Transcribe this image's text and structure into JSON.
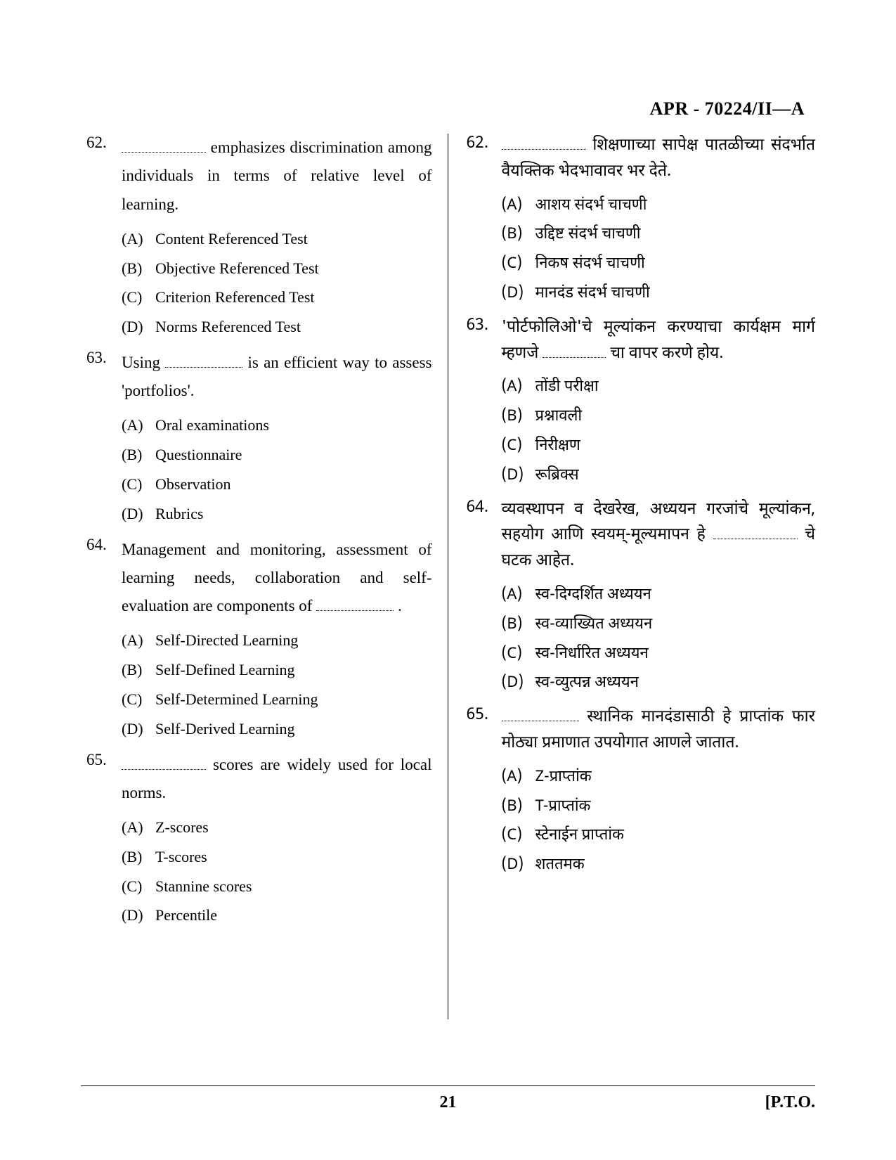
{
  "header": {
    "code": "APR - 70224/II—A"
  },
  "footer": {
    "page": "21",
    "pto": "[P.T.O."
  },
  "blank_widths": {
    "short": "90px",
    "med": "110px",
    "long": "120px"
  },
  "left": {
    "questions": [
      {
        "num": "62.",
        "stem_pre": "",
        "blank": "long",
        "stem_post": " emphasizes discrimination among individuals in terms of relative level of learning.",
        "options": [
          {
            "label": "(A)",
            "text": "Content Referenced Test"
          },
          {
            "label": "(B)",
            "text": "Objective Referenced Test"
          },
          {
            "label": "(C)",
            "text": "Criterion Referenced Test"
          },
          {
            "label": "(D)",
            "text": "Norms Referenced Test"
          }
        ]
      },
      {
        "num": "63.",
        "stem_pre": "Using ",
        "blank": "med",
        "stem_post": " is an efficient way to assess 'portfolios'.",
        "options": [
          {
            "label": "(A)",
            "text": "Oral examinations"
          },
          {
            "label": "(B)",
            "text": "Questionnaire"
          },
          {
            "label": "(C)",
            "text": "Observation"
          },
          {
            "label": "(D)",
            "text": "Rubrics"
          }
        ]
      },
      {
        "num": "64.",
        "stem_pre": "Management and monitoring, assessment of learning needs, collaboration and self-evaluation are components of ",
        "blank": "med",
        "stem_post": " .",
        "options": [
          {
            "label": "(A)",
            "text": "Self-Directed Learning"
          },
          {
            "label": "(B)",
            "text": "Self-Defined Learning"
          },
          {
            "label": "(C)",
            "text": "Self-Determined Learning"
          },
          {
            "label": "(D)",
            "text": "Self-Derived Learning"
          }
        ]
      },
      {
        "num": "65.",
        "stem_pre": "",
        "blank": "long",
        "stem_post": " scores are widely used for local norms.",
        "options": [
          {
            "label": "(A)",
            "text": "Z-scores"
          },
          {
            "label": "(B)",
            "text": "T-scores"
          },
          {
            "label": "(C)",
            "text": "Stannine scores"
          },
          {
            "label": "(D)",
            "text": "Percentile"
          }
        ]
      }
    ]
  },
  "right": {
    "questions": [
      {
        "num": "62.",
        "stem_pre": "",
        "blank": "long",
        "stem_post": " शिक्षणाच्या सापेक्ष पातळीच्या संदर्भात वैयक्तिक भेदभावावर भर देते.",
        "options": [
          {
            "label": "(A)",
            "text": "आशय संदर्भ चाचणी"
          },
          {
            "label": "(B)",
            "text": "उद्दिष्ट संदर्भ चाचणी"
          },
          {
            "label": "(C)",
            "text": "निकष संदर्भ चाचणी"
          },
          {
            "label": "(D)",
            "text": "मानदंड संदर्भ चाचणी"
          }
        ]
      },
      {
        "num": "63.",
        "stem_pre": "'पोर्टफोलिओ'चे मूल्यांकन करण्याचा कार्यक्षम मार्ग म्हणजे ",
        "blank": "short",
        "stem_post": " चा वापर करणे होय.",
        "options": [
          {
            "label": "(A)",
            "text": "तोंडी परीक्षा"
          },
          {
            "label": "(B)",
            "text": "प्रश्नावली"
          },
          {
            "label": "(C)",
            "text": "निरीक्षण"
          },
          {
            "label": "(D)",
            "text": "रूब्रिक्स"
          }
        ]
      },
      {
        "num": "64.",
        "stem_pre": "व्यवस्थापन व देखरेख, अध्ययन गरजांचे मूल्यांकन, सहयोग आणि स्वयम्-मूल्यमापन हे ",
        "blank": "long",
        "stem_post": " चे घटक आहेत.",
        "options": [
          {
            "label": "(A)",
            "text": "स्व-दिग्दर्शित अध्ययन"
          },
          {
            "label": "(B)",
            "text": "स्व-व्याख्यित अध्ययन"
          },
          {
            "label": "(C)",
            "text": "स्व-निर्धारित अध्ययन"
          },
          {
            "label": "(D)",
            "text": "स्व-व्युत्पन्न अध्ययन"
          }
        ]
      },
      {
        "num": "65.",
        "stem_pre": "",
        "blank": "med",
        "stem_post": " स्थानिक मानदंडासाठी हे प्राप्तांक फार मोठ्या प्रमाणात उपयोगात आणले जातात.",
        "options": [
          {
            "label": "(A)",
            "text": "Z-प्राप्तांक"
          },
          {
            "label": "(B)",
            "text": "T-प्राप्तांक"
          },
          {
            "label": "(C)",
            "text": "स्टेनाईन प्राप्तांक"
          },
          {
            "label": "(D)",
            "text": "शततमक"
          }
        ]
      }
    ]
  }
}
